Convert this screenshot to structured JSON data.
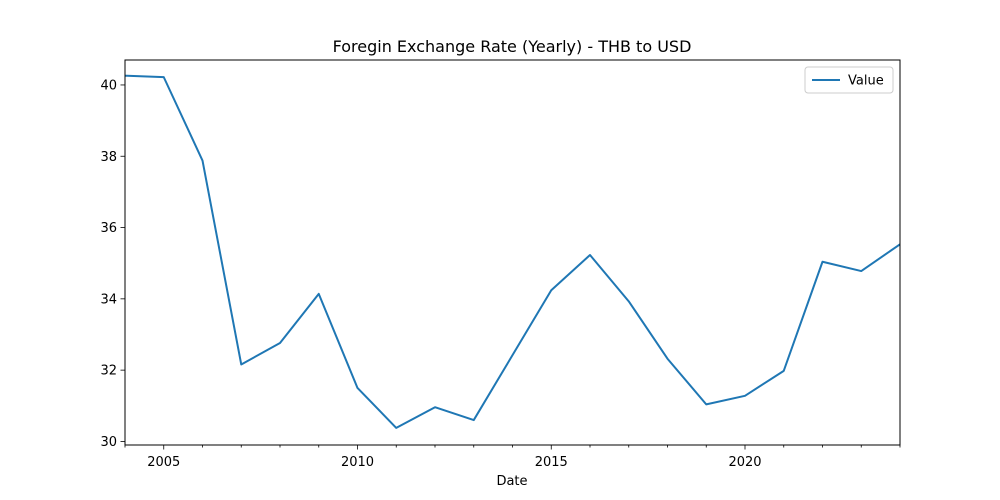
{
  "chart_data": {
    "type": "line",
    "title": "Foregin Exchange Rate (Yearly) - THB to USD",
    "xlabel": "Date",
    "ylabel": "",
    "xlim": [
      2004,
      2024
    ],
    "ylim": [
      29.9,
      40.7
    ],
    "x_ticks": [
      2005,
      2010,
      2015,
      2020
    ],
    "x_tick_labels": [
      "2005",
      "2010",
      "2015",
      "2020"
    ],
    "y_ticks": [
      30,
      32,
      34,
      36,
      38,
      40
    ],
    "y_tick_labels": [
      "30",
      "32",
      "34",
      "36",
      "38",
      "40"
    ],
    "grid": false,
    "legend_position": "top-right",
    "series": [
      {
        "name": "Value",
        "color": "#1f77b4",
        "x": [
          2004,
          2005,
          2006,
          2007,
          2008,
          2009,
          2010,
          2011,
          2012,
          2013,
          2014,
          2015,
          2016,
          2017,
          2018,
          2019,
          2020,
          2021,
          2022,
          2023,
          2024
        ],
        "values": [
          40.26,
          40.22,
          37.88,
          32.16,
          32.76,
          34.14,
          31.5,
          30.38,
          30.96,
          30.6,
          32.42,
          34.24,
          35.23,
          33.93,
          32.32,
          31.04,
          31.28,
          31.98,
          35.04,
          34.78,
          35.53
        ]
      }
    ]
  }
}
